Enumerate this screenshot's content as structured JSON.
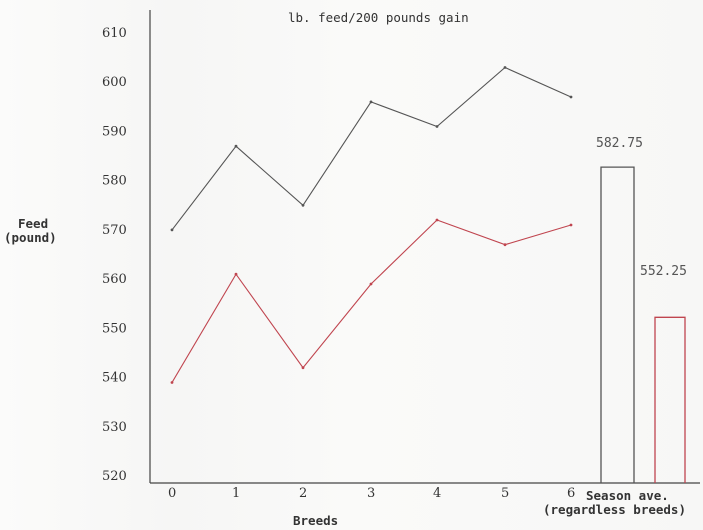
{
  "chart_data": {
    "type": "line",
    "title": "lb. feed/200 pounds gain",
    "xlabel": "Breeds",
    "ylabel": [
      "Feed",
      "(pound)"
    ],
    "ylim": [
      520,
      610
    ],
    "yticks": [
      520,
      530,
      540,
      550,
      560,
      570,
      580,
      590,
      600,
      610
    ],
    "categories": [
      "0",
      "1",
      "2",
      "3",
      "4",
      "5",
      "6"
    ],
    "extra_category": [
      "Season ave.",
      "(regardless breeds)"
    ],
    "series": [
      {
        "values": [
          570,
          587,
          575,
          596,
          591,
          603,
          597
        ],
        "color": "#555555"
      },
      {
        "values": [
          539,
          561,
          542,
          559,
          572,
          567,
          571
        ],
        "color": "#c0454f"
      }
    ],
    "bars": [
      {
        "value": 582.75,
        "label": "582.75",
        "color": "#555555"
      },
      {
        "value": 552.25,
        "label": "552.25",
        "color": "#c0454f"
      }
    ],
    "grid": false,
    "legend": "none"
  }
}
